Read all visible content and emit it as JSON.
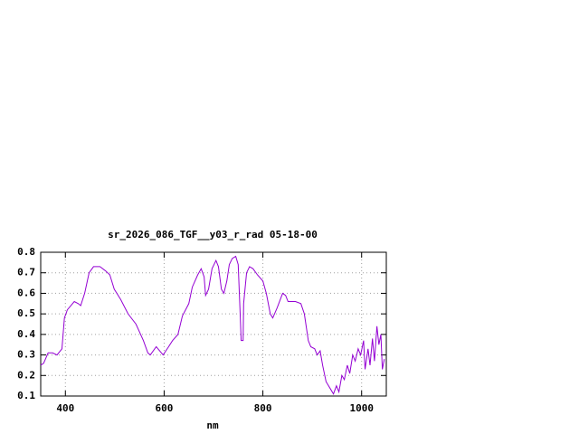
{
  "chart_data": {
    "type": "line",
    "title": "sr_2026_086_TGF__y03_r_rad 05-18-00",
    "x_label": "nm",
    "x": [
      350,
      356,
      365,
      374,
      383,
      393,
      398,
      404,
      411,
      418,
      426,
      431,
      439,
      448,
      457,
      470,
      481,
      490,
      499,
      512,
      527,
      543,
      558,
      567,
      572,
      584,
      591,
      598,
      609,
      617,
      628,
      637,
      650,
      657,
      668,
      675,
      681,
      684,
      690,
      697,
      705,
      710,
      716,
      721,
      727,
      732,
      738,
      745,
      750,
      754,
      756,
      760,
      761,
      767,
      773,
      780,
      789,
      800,
      807,
      815,
      820,
      829,
      840,
      846,
      851,
      866,
      877,
      884,
      892,
      897,
      905,
      910,
      916,
      921,
      928,
      938,
      943,
      949,
      954,
      960,
      965,
      971,
      976,
      982,
      987,
      993,
      998,
      1004,
      1007,
      1013,
      1017,
      1022,
      1026,
      1031,
      1035,
      1039,
      1042,
      1046
    ],
    "series": [
      {
        "color": "#9400d3",
        "values": [
          0.25,
          0.26,
          0.31,
          0.31,
          0.3,
          0.33,
          0.48,
          0.52,
          0.54,
          0.56,
          0.55,
          0.54,
          0.6,
          0.7,
          0.73,
          0.73,
          0.71,
          0.69,
          0.62,
          0.57,
          0.5,
          0.45,
          0.37,
          0.31,
          0.3,
          0.34,
          0.32,
          0.3,
          0.34,
          0.37,
          0.4,
          0.49,
          0.55,
          0.63,
          0.69,
          0.72,
          0.68,
          0.59,
          0.62,
          0.72,
          0.76,
          0.73,
          0.62,
          0.6,
          0.66,
          0.74,
          0.77,
          0.78,
          0.74,
          0.5,
          0.37,
          0.37,
          0.55,
          0.7,
          0.73,
          0.72,
          0.69,
          0.66,
          0.6,
          0.5,
          0.48,
          0.53,
          0.6,
          0.59,
          0.56,
          0.56,
          0.55,
          0.5,
          0.37,
          0.34,
          0.33,
          0.3,
          0.32,
          0.25,
          0.17,
          0.13,
          0.11,
          0.15,
          0.12,
          0.2,
          0.18,
          0.25,
          0.21,
          0.3,
          0.27,
          0.33,
          0.3,
          0.37,
          0.23,
          0.33,
          0.25,
          0.38,
          0.27,
          0.44,
          0.35,
          0.4,
          0.23,
          0.28
        ]
      }
    ],
    "xlim": [
      350,
      1050
    ],
    "xticks": [
      400,
      600,
      800,
      1000
    ],
    "ylim": [
      0.1,
      0.8
    ],
    "yticks": [
      0.1,
      0.2,
      0.3,
      0.4,
      0.5,
      0.6,
      0.7,
      0.8
    ],
    "grid": true
  }
}
